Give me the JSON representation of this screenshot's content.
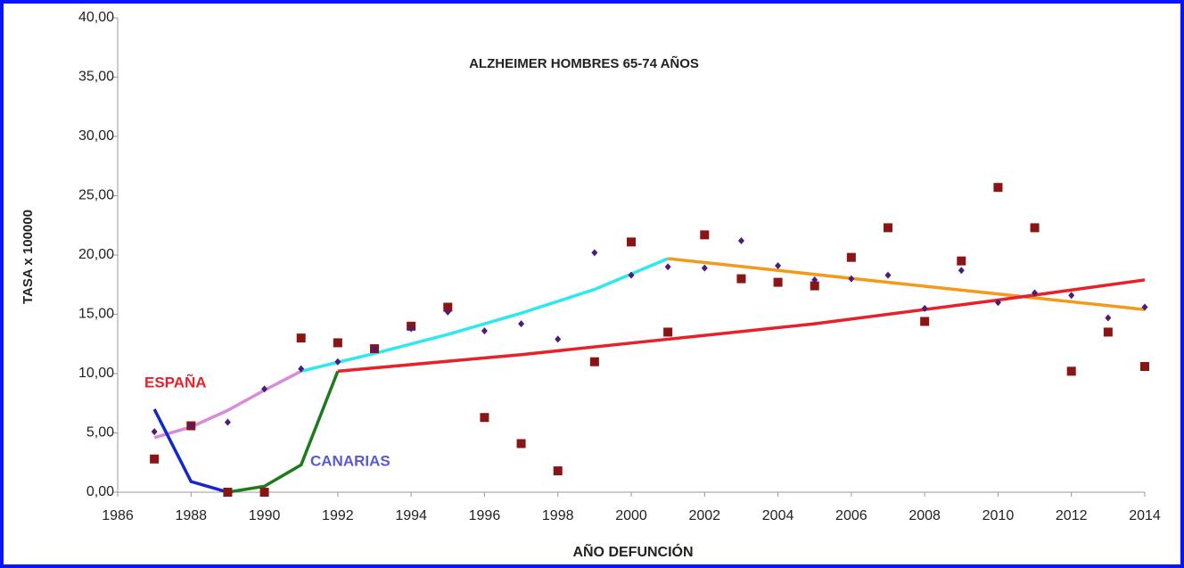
{
  "chart_data": {
    "type": "scatter",
    "title": "ALZHEIMER HOMBRES 65-74 AÑOS",
    "xlabel": "AÑO DEFUNCIÓN",
    "ylabel": "TASA x 100000",
    "xlim": [
      1986,
      2014
    ],
    "ylim": [
      0,
      40
    ],
    "xticks": [
      1986,
      1988,
      1990,
      1992,
      1994,
      1996,
      1998,
      2000,
      2002,
      2004,
      2006,
      2008,
      2010,
      2012,
      2014
    ],
    "yticks": [
      {
        "value": 0,
        "label": "0,00"
      },
      {
        "value": 5,
        "label": "5,00"
      },
      {
        "value": 10,
        "label": "10,00"
      },
      {
        "value": 15,
        "label": "15,00"
      },
      {
        "value": 20,
        "label": "20,00"
      },
      {
        "value": 25,
        "label": "25,00"
      },
      {
        "value": 30,
        "label": "30,00"
      },
      {
        "value": 35,
        "label": "35,00"
      },
      {
        "value": 40,
        "label": "40,00"
      }
    ],
    "annotations": [
      {
        "text": "ESPAÑA",
        "color": "#e8202a"
      },
      {
        "text": "CANARIAS",
        "color": "#5a5ad0"
      }
    ],
    "series": [
      {
        "marker": "square",
        "color": "#8b1414",
        "x": [
          1987,
          1988,
          1989,
          1990,
          1991,
          1992,
          1993,
          1994,
          1995,
          1996,
          1997,
          1998,
          1999,
          2000,
          2001,
          2002,
          2003,
          2004,
          2005,
          2006,
          2007,
          2008,
          2009,
          2010,
          2011,
          2012,
          2013,
          2014
        ],
        "values": [
          2.8,
          5.6,
          0,
          0,
          13.0,
          12.6,
          12.1,
          14.0,
          15.6,
          6.3,
          4.1,
          1.8,
          11.0,
          21.1,
          13.5,
          21.7,
          18.0,
          17.7,
          17.4,
          19.8,
          22.3,
          14.4,
          19.5,
          25.7,
          22.3,
          10.2,
          13.5,
          10.6
        ]
      },
      {
        "marker": "diamond",
        "color": "#4b1c7a",
        "x": [
          1987,
          1988,
          1989,
          1990,
          1991,
          1992,
          1993,
          1994,
          1995,
          1996,
          1997,
          1998,
          1999,
          2000,
          2001,
          2002,
          2003,
          2004,
          2005,
          2006,
          2007,
          2008,
          2009,
          2010,
          2011,
          2012,
          2013,
          2014
        ],
        "values": [
          5.1,
          5.6,
          5.9,
          8.7,
          10.4,
          11.0,
          12.1,
          13.8,
          15.2,
          13.6,
          14.2,
          12.9,
          20.2,
          18.3,
          19.0,
          18.9,
          21.2,
          19.1,
          17.9,
          18.0,
          18.3,
          15.5,
          18.7,
          16.0,
          16.8,
          16.6,
          14.7,
          15.6
        ]
      },
      {
        "marker": "line",
        "color": "#d98ad9",
        "x": [
          1987,
          1988,
          1989,
          1990,
          1991
        ],
        "values": [
          4.6,
          5.5,
          6.9,
          8.6,
          10.2
        ]
      },
      {
        "marker": "line",
        "color": "#2ee8f0",
        "x": [
          1991,
          1993,
          1995,
          1997,
          1999,
          2001
        ],
        "values": [
          10.2,
          11.7,
          13.3,
          15.1,
          17.1,
          19.7
        ]
      },
      {
        "marker": "line",
        "color": "#f39a1a",
        "x": [
          2001,
          2007,
          2014
        ],
        "values": [
          19.7,
          17.7,
          15.4
        ]
      },
      {
        "marker": "line",
        "color": "#1428c8",
        "x": [
          1987,
          1988,
          1989
        ],
        "values": [
          7.0,
          0.9,
          0
        ]
      },
      {
        "marker": "line",
        "color": "#1e7a1e",
        "x": [
          1989,
          1990,
          1991,
          1992
        ],
        "values": [
          0,
          0.5,
          2.3,
          10.2
        ]
      },
      {
        "marker": "line",
        "color": "#e8202a",
        "x": [
          1992,
          1997,
          2001,
          2005,
          2010,
          2014
        ],
        "values": [
          10.2,
          11.6,
          12.9,
          14.2,
          16.2,
          17.9
        ]
      }
    ]
  }
}
